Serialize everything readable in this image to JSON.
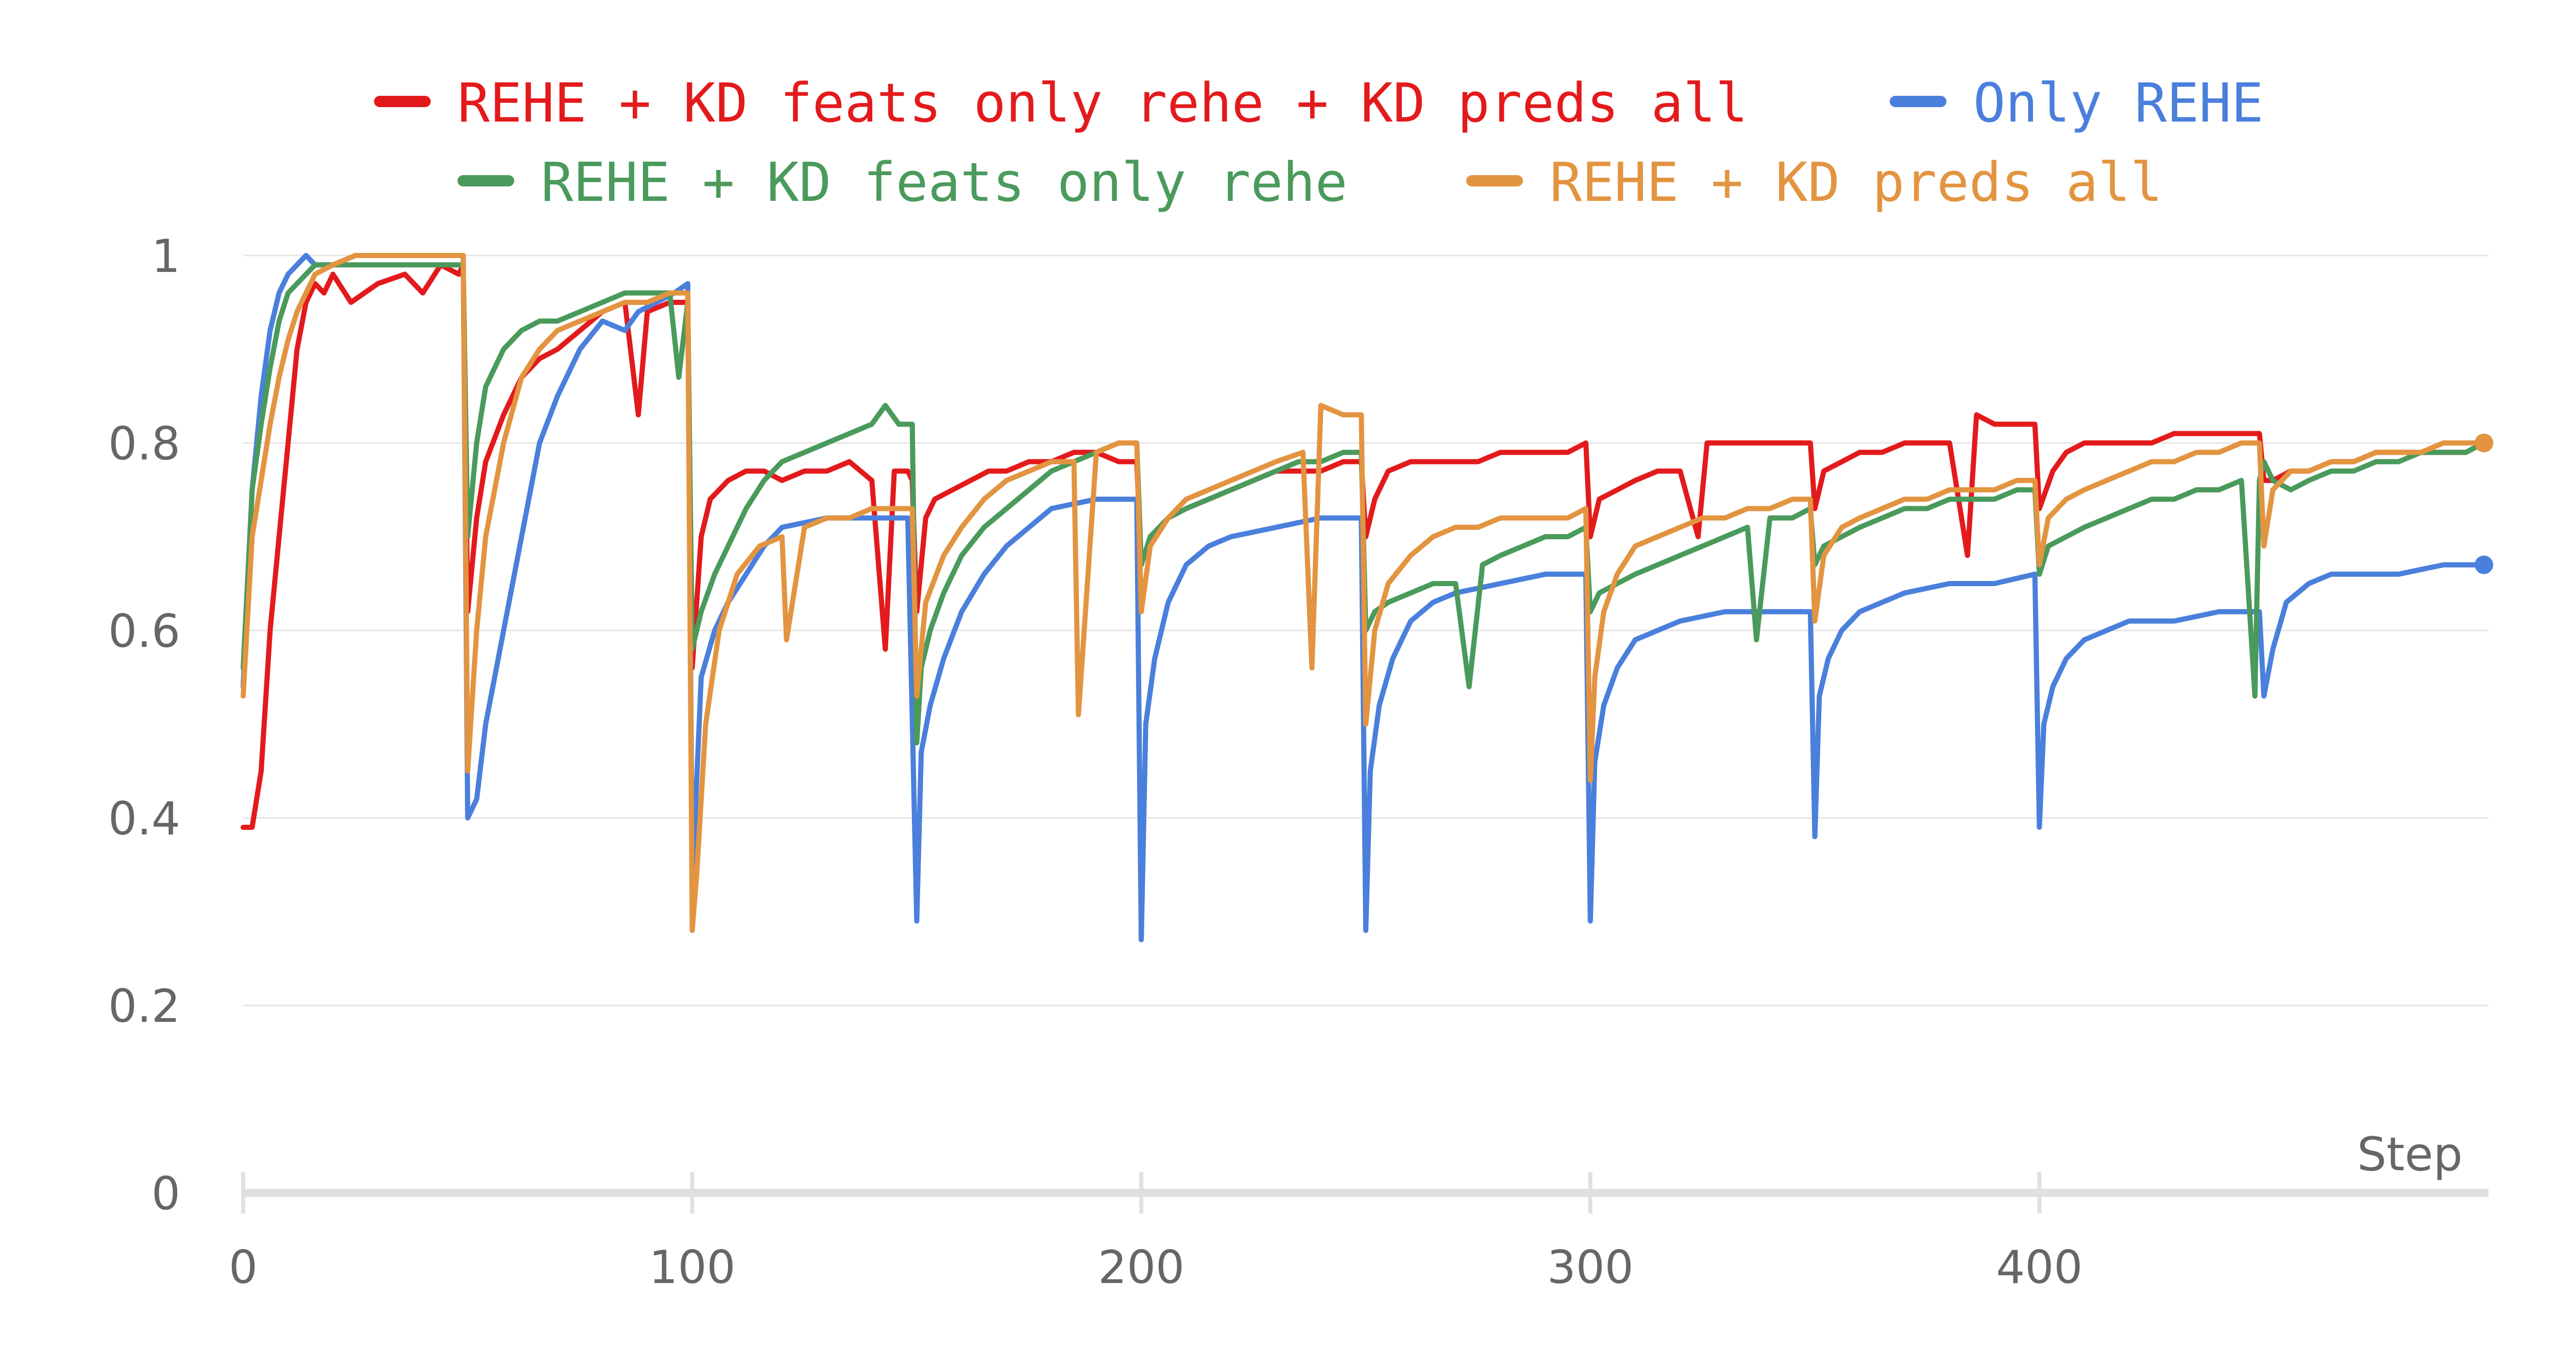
{
  "chart_data": {
    "type": "line",
    "title": "",
    "xlabel": "Step",
    "ylabel": "",
    "xlim": [
      0,
      500
    ],
    "ylim": [
      0,
      1
    ],
    "x_ticks": [
      0,
      100,
      200,
      300,
      400
    ],
    "x_tick_labels": [
      "0",
      "100",
      "200",
      "300",
      "400"
    ],
    "y_ticks": [
      0,
      0.2,
      0.4,
      0.6,
      0.8,
      1
    ],
    "y_tick_labels": [
      "0",
      "0.2",
      "0.4",
      "0.6",
      "0.8",
      "1"
    ],
    "grid": true,
    "legend_position": "top",
    "series": [
      {
        "name": "REHE + KD feats only rehe + KD preds all",
        "color": "#e31a1c",
        "x": [
          0,
          2,
          4,
          6,
          8,
          10,
          12,
          14,
          16,
          18,
          20,
          24,
          30,
          36,
          40,
          44,
          48,
          49,
          50,
          52,
          54,
          58,
          62,
          66,
          70,
          75,
          80,
          85,
          88,
          90,
          95,
          99,
          100,
          102,
          104,
          108,
          112,
          116,
          120,
          125,
          130,
          135,
          140,
          143,
          145,
          148,
          149,
          150,
          152,
          154,
          158,
          162,
          166,
          170,
          175,
          180,
          185,
          190,
          195,
          199,
          200,
          202,
          206,
          210,
          215,
          220,
          225,
          230,
          235,
          240,
          245,
          249,
          250,
          252,
          255,
          260,
          265,
          270,
          275,
          280,
          285,
          290,
          295,
          299,
          300,
          302,
          306,
          310,
          315,
          320,
          324,
          326,
          330,
          335,
          340,
          345,
          349,
          350,
          352,
          356,
          360,
          365,
          370,
          375,
          380,
          384,
          386,
          390,
          395,
          399,
          400,
          403,
          406,
          410,
          415,
          420,
          425,
          430,
          435,
          440,
          445,
          449,
          450,
          452,
          456,
          460,
          465,
          470,
          475,
          480,
          485,
          490,
          495,
          499
        ],
        "y": [
          0.39,
          0.39,
          0.45,
          0.6,
          0.7,
          0.8,
          0.9,
          0.95,
          0.97,
          0.96,
          0.98,
          0.95,
          0.97,
          0.98,
          0.96,
          0.99,
          0.98,
          0.99,
          0.62,
          0.72,
          0.78,
          0.83,
          0.87,
          0.89,
          0.9,
          0.92,
          0.94,
          0.95,
          0.83,
          0.94,
          0.95,
          0.95,
          0.56,
          0.7,
          0.74,
          0.76,
          0.77,
          0.77,
          0.76,
          0.77,
          0.77,
          0.78,
          0.76,
          0.58,
          0.77,
          0.77,
          0.76,
          0.62,
          0.72,
          0.74,
          0.75,
          0.76,
          0.77,
          0.77,
          0.78,
          0.78,
          0.79,
          0.79,
          0.78,
          0.78,
          0.67,
          0.7,
          0.72,
          0.73,
          0.74,
          0.75,
          0.76,
          0.77,
          0.77,
          0.77,
          0.78,
          0.78,
          0.7,
          0.74,
          0.77,
          0.78,
          0.78,
          0.78,
          0.78,
          0.79,
          0.79,
          0.79,
          0.79,
          0.8,
          0.7,
          0.74,
          0.75,
          0.76,
          0.77,
          0.77,
          0.7,
          0.8,
          0.8,
          0.8,
          0.8,
          0.8,
          0.8,
          0.73,
          0.77,
          0.78,
          0.79,
          0.79,
          0.8,
          0.8,
          0.8,
          0.68,
          0.83,
          0.82,
          0.82,
          0.82,
          0.73,
          0.77,
          0.79,
          0.8,
          0.8,
          0.8,
          0.8,
          0.81,
          0.81,
          0.81,
          0.81,
          0.81,
          0.76,
          0.76,
          0.77,
          0.77,
          0.78,
          0.78,
          0.79,
          0.79,
          0.79,
          0.79,
          0.79,
          0.8
        ]
      },
      {
        "name": "Only REHE",
        "color": "#4a7fdc",
        "x": [
          0,
          2,
          4,
          6,
          8,
          10,
          12,
          14,
          16,
          20,
          25,
          30,
          40,
          49,
          50,
          52,
          54,
          58,
          62,
          66,
          70,
          75,
          80,
          85,
          88,
          92,
          96,
          99,
          100,
          102,
          105,
          108,
          112,
          116,
          120,
          130,
          140,
          148,
          150,
          151,
          153,
          156,
          160,
          165,
          170,
          175,
          180,
          190,
          199,
          200,
          201,
          203,
          206,
          210,
          215,
          220,
          230,
          240,
          249,
          250,
          251,
          253,
          256,
          260,
          265,
          270,
          280,
          290,
          299,
          300,
          301,
          303,
          306,
          310,
          315,
          320,
          330,
          340,
          349,
          350,
          351,
          353,
          356,
          360,
          365,
          370,
          380,
          390,
          399,
          400,
          401,
          403,
          406,
          410,
          415,
          420,
          430,
          440,
          449,
          450,
          452,
          455,
          460,
          465,
          470,
          480,
          490,
          499
        ],
        "y": [
          0.54,
          0.75,
          0.85,
          0.92,
          0.96,
          0.98,
          0.99,
          1.0,
          0.99,
          0.99,
          1.0,
          1.0,
          1.0,
          1.0,
          0.4,
          0.42,
          0.5,
          0.6,
          0.7,
          0.8,
          0.85,
          0.9,
          0.93,
          0.92,
          0.94,
          0.95,
          0.96,
          0.97,
          0.33,
          0.55,
          0.6,
          0.63,
          0.66,
          0.69,
          0.71,
          0.72,
          0.72,
          0.72,
          0.29,
          0.47,
          0.52,
          0.57,
          0.62,
          0.66,
          0.69,
          0.71,
          0.73,
          0.74,
          0.74,
          0.27,
          0.5,
          0.57,
          0.63,
          0.67,
          0.69,
          0.7,
          0.71,
          0.72,
          0.72,
          0.28,
          0.45,
          0.52,
          0.57,
          0.61,
          0.63,
          0.64,
          0.65,
          0.66,
          0.66,
          0.29,
          0.46,
          0.52,
          0.56,
          0.59,
          0.6,
          0.61,
          0.62,
          0.62,
          0.62,
          0.38,
          0.53,
          0.57,
          0.6,
          0.62,
          0.63,
          0.64,
          0.65,
          0.65,
          0.66,
          0.39,
          0.5,
          0.54,
          0.57,
          0.59,
          0.6,
          0.61,
          0.61,
          0.62,
          0.62,
          0.53,
          0.58,
          0.63,
          0.65,
          0.66,
          0.66,
          0.66,
          0.67,
          0.67
        ]
      },
      {
        "name": "REHE + KD feats only rehe",
        "color": "#4a9a5c",
        "x": [
          0,
          2,
          4,
          6,
          8,
          10,
          12,
          14,
          16,
          20,
          25,
          30,
          40,
          49,
          50,
          52,
          54,
          58,
          62,
          66,
          70,
          75,
          80,
          85,
          90,
          95,
          97,
          99,
          100,
          102,
          105,
          108,
          112,
          116,
          120,
          125,
          130,
          135,
          140,
          143,
          146,
          149,
          150,
          151,
          153,
          156,
          160,
          165,
          170,
          175,
          180,
          185,
          190,
          195,
          199,
          200,
          202,
          206,
          210,
          215,
          220,
          225,
          230,
          235,
          240,
          245,
          249,
          250,
          252,
          255,
          260,
          265,
          270,
          273,
          276,
          280,
          285,
          290,
          295,
          299,
          300,
          302,
          306,
          310,
          315,
          320,
          325,
          330,
          335,
          337,
          340,
          345,
          349,
          350,
          352,
          356,
          360,
          365,
          370,
          375,
          380,
          385,
          390,
          395,
          399,
          400,
          402,
          406,
          410,
          415,
          420,
          425,
          430,
          435,
          440,
          445,
          448,
          449,
          450,
          452,
          456,
          460,
          465,
          470,
          475,
          480,
          485,
          490,
          495,
          499
        ],
        "y": [
          0.56,
          0.75,
          0.82,
          0.88,
          0.93,
          0.96,
          0.97,
          0.98,
          0.99,
          0.99,
          0.99,
          0.99,
          0.99,
          0.99,
          0.7,
          0.8,
          0.86,
          0.9,
          0.92,
          0.93,
          0.93,
          0.94,
          0.95,
          0.96,
          0.96,
          0.96,
          0.87,
          0.95,
          0.58,
          0.62,
          0.66,
          0.69,
          0.73,
          0.76,
          0.78,
          0.79,
          0.8,
          0.81,
          0.82,
          0.84,
          0.82,
          0.82,
          0.48,
          0.56,
          0.6,
          0.64,
          0.68,
          0.71,
          0.73,
          0.75,
          0.77,
          0.78,
          0.79,
          0.8,
          0.8,
          0.67,
          0.7,
          0.72,
          0.73,
          0.74,
          0.75,
          0.76,
          0.77,
          0.78,
          0.78,
          0.79,
          0.79,
          0.6,
          0.62,
          0.63,
          0.64,
          0.65,
          0.65,
          0.54,
          0.67,
          0.68,
          0.69,
          0.7,
          0.7,
          0.71,
          0.62,
          0.64,
          0.65,
          0.66,
          0.67,
          0.68,
          0.69,
          0.7,
          0.71,
          0.59,
          0.72,
          0.72,
          0.73,
          0.67,
          0.69,
          0.7,
          0.71,
          0.72,
          0.73,
          0.73,
          0.74,
          0.74,
          0.74,
          0.75,
          0.75,
          0.66,
          0.69,
          0.7,
          0.71,
          0.72,
          0.73,
          0.74,
          0.74,
          0.75,
          0.75,
          0.76,
          0.53,
          0.76,
          0.78,
          0.76,
          0.75,
          0.76,
          0.77,
          0.77,
          0.78,
          0.78,
          0.79,
          0.79,
          0.79,
          0.8
        ]
      },
      {
        "name": "REHE + KD preds all",
        "color": "#e39440",
        "x": [
          0,
          2,
          4,
          6,
          8,
          10,
          12,
          14,
          16,
          20,
          25,
          30,
          40,
          49,
          50,
          52,
          54,
          58,
          62,
          66,
          70,
          75,
          80,
          85,
          90,
          95,
          99,
          100,
          101,
          103,
          106,
          110,
          115,
          120,
          121,
          125,
          130,
          135,
          140,
          145,
          149,
          150,
          152,
          156,
          160,
          165,
          170,
          175,
          180,
          185,
          186,
          190,
          195,
          199,
          200,
          202,
          206,
          210,
          215,
          220,
          225,
          230,
          236,
          238,
          240,
          245,
          249,
          250,
          252,
          255,
          260,
          265,
          270,
          275,
          280,
          285,
          290,
          295,
          299,
          300,
          301,
          303,
          306,
          310,
          315,
          320,
          325,
          330,
          335,
          340,
          345,
          349,
          350,
          352,
          356,
          360,
          365,
          370,
          375,
          380,
          385,
          390,
          395,
          399,
          400,
          402,
          406,
          410,
          415,
          420,
          425,
          430,
          435,
          440,
          445,
          449,
          450,
          452,
          456,
          460,
          465,
          470,
          475,
          480,
          485,
          490,
          495,
          499
        ],
        "y": [
          0.53,
          0.7,
          0.76,
          0.82,
          0.87,
          0.91,
          0.94,
          0.96,
          0.98,
          0.99,
          1.0,
          1.0,
          1.0,
          1.0,
          0.45,
          0.6,
          0.7,
          0.8,
          0.87,
          0.9,
          0.92,
          0.93,
          0.94,
          0.95,
          0.95,
          0.96,
          0.96,
          0.28,
          0.34,
          0.5,
          0.6,
          0.66,
          0.69,
          0.7,
          0.59,
          0.71,
          0.72,
          0.72,
          0.73,
          0.73,
          0.73,
          0.53,
          0.63,
          0.68,
          0.71,
          0.74,
          0.76,
          0.77,
          0.78,
          0.78,
          0.51,
          0.79,
          0.8,
          0.8,
          0.62,
          0.69,
          0.72,
          0.74,
          0.75,
          0.76,
          0.77,
          0.78,
          0.79,
          0.56,
          0.84,
          0.83,
          0.83,
          0.5,
          0.6,
          0.65,
          0.68,
          0.7,
          0.71,
          0.71,
          0.72,
          0.72,
          0.72,
          0.72,
          0.73,
          0.44,
          0.55,
          0.62,
          0.66,
          0.69,
          0.7,
          0.71,
          0.72,
          0.72,
          0.73,
          0.73,
          0.74,
          0.74,
          0.61,
          0.68,
          0.71,
          0.72,
          0.73,
          0.74,
          0.74,
          0.75,
          0.75,
          0.75,
          0.76,
          0.76,
          0.67,
          0.72,
          0.74,
          0.75,
          0.76,
          0.77,
          0.78,
          0.78,
          0.79,
          0.79,
          0.8,
          0.8,
          0.69,
          0.75,
          0.77,
          0.77,
          0.78,
          0.78,
          0.79,
          0.79,
          0.79,
          0.8,
          0.8,
          0.8
        ]
      }
    ]
  }
}
